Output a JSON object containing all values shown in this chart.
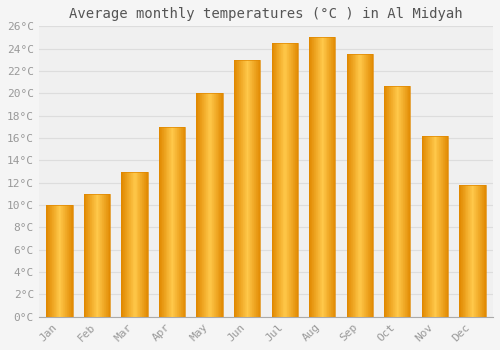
{
  "title": "Average monthly temperatures (°C ) in Al Midyah",
  "months": [
    "Jan",
    "Feb",
    "Mar",
    "Apr",
    "May",
    "Jun",
    "Jul",
    "Aug",
    "Sep",
    "Oct",
    "Nov",
    "Dec"
  ],
  "values": [
    10.0,
    11.0,
    13.0,
    17.0,
    20.0,
    23.0,
    24.5,
    25.0,
    23.5,
    20.7,
    16.2,
    11.8
  ],
  "bar_color_main": "#F5A623",
  "bar_color_light": "#FFC84A",
  "bar_color_dark": "#E08800",
  "background_color": "#F5F5F5",
  "plot_bg_color": "#F0F0F0",
  "grid_color": "#DDDDDD",
  "ylim": [
    0,
    26
  ],
  "yticks": [
    0,
    2,
    4,
    6,
    8,
    10,
    12,
    14,
    16,
    18,
    20,
    22,
    24,
    26
  ],
  "ytick_labels": [
    "0°C",
    "2°C",
    "4°C",
    "6°C",
    "8°C",
    "10°C",
    "12°C",
    "14°C",
    "16°C",
    "18°C",
    "20°C",
    "22°C",
    "24°C",
    "26°C"
  ],
  "title_fontsize": 10,
  "tick_fontsize": 8,
  "tick_color": "#999999",
  "title_color": "#555555",
  "font_family": "monospace",
  "bar_width": 0.7,
  "figsize": [
    5.0,
    3.5
  ],
  "dpi": 100
}
